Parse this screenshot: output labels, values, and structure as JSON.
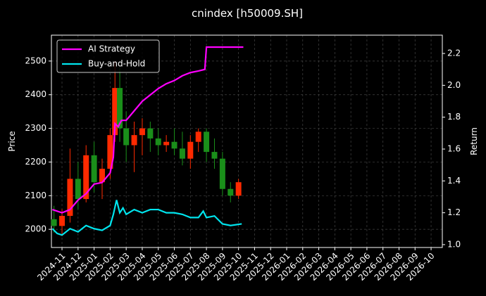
{
  "chart_data": {
    "type": "candlestick",
    "title": "cnindex [h50009.SH]",
    "y_label": "Price",
    "y2_label": "Return",
    "xlim": [
      -0.66,
      23.7
    ],
    "xticks": [
      {
        "value": 0,
        "label": "2024-11"
      },
      {
        "value": 1,
        "label": "2024-12"
      },
      {
        "value": 2,
        "label": "2025-01"
      },
      {
        "value": 3,
        "label": "2025-02"
      },
      {
        "value": 4,
        "label": "2025-03"
      },
      {
        "value": 5,
        "label": "2025-04"
      },
      {
        "value": 6,
        "label": "2025-05"
      },
      {
        "value": 7,
        "label": "2025-06"
      },
      {
        "value": 8,
        "label": "2025-07"
      },
      {
        "value": 9,
        "label": "2025-08"
      },
      {
        "value": 10,
        "label": "2025-09"
      },
      {
        "value": 11,
        "label": "2025-10"
      },
      {
        "value": 12,
        "label": "2025-11"
      },
      {
        "value": 13,
        "label": "2025-12"
      },
      {
        "value": 14,
        "label": "2026-01"
      },
      {
        "value": 15,
        "label": "2026-02"
      },
      {
        "value": 16,
        "label": "2026-03"
      },
      {
        "value": 17,
        "label": "2026-04"
      },
      {
        "value": 18,
        "label": "2026-05"
      },
      {
        "value": 19,
        "label": "2026-06"
      },
      {
        "value": 20,
        "label": "2026-07"
      },
      {
        "value": 21,
        "label": "2026-08"
      },
      {
        "value": 22,
        "label": "2026-09"
      },
      {
        "value": 23,
        "label": "2026-10"
      }
    ],
    "ylim": [
      1946,
      2577
    ],
    "yticks": [
      2000,
      2100,
      2200,
      2300,
      2400,
      2500
    ],
    "y2lim": [
      0.982,
      2.315
    ],
    "y2ticks": [
      {
        "value": 1,
        "label": "1.0"
      },
      1.2,
      1.4,
      1.6,
      1.8,
      {
        "value": 2,
        "label": "2.0"
      },
      2.2
    ],
    "grid": true,
    "legend": "upper left",
    "up_color": "#ff2a00",
    "down_color": "#1a8f1a",
    "candles": {
      "x": [
        -0.5,
        0.0,
        0.5,
        1.0,
        1.5,
        2.0,
        2.5,
        3.0,
        3.3,
        3.6,
        4.0,
        4.5,
        5.0,
        5.5,
        6.0,
        6.5,
        7.0,
        7.5,
        8.0,
        8.5,
        9.0,
        9.5,
        10.0,
        10.5,
        11.0
      ],
      "open": [
        2030,
        2010,
        2040,
        2150,
        2090,
        2220,
        2140,
        2180,
        2280,
        2420,
        2300,
        2250,
        2280,
        2300,
        2270,
        2250,
        2260,
        2240,
        2210,
        2260,
        2290,
        2230,
        2210,
        2120,
        2100
      ],
      "high": [
        2070,
        2060,
        2240,
        2200,
        2250,
        2260,
        2210,
        2300,
        2500,
        2480,
        2350,
        2320,
        2330,
        2320,
        2300,
        2280,
        2300,
        2290,
        2280,
        2300,
        2300,
        2270,
        2230,
        2140,
        2150
      ],
      "low": [
        1990,
        1980,
        2020,
        2060,
        2080,
        2110,
        2090,
        2150,
        2260,
        2260,
        2200,
        2170,
        2220,
        2230,
        2220,
        2230,
        2220,
        2190,
        2180,
        2230,
        2200,
        2180,
        2100,
        2080,
        2090
      ],
      "close": [
        2010,
        2040,
        2150,
        2090,
        2220,
        2140,
        2180,
        2280,
        2420,
        2300,
        2250,
        2280,
        2300,
        2270,
        2250,
        2260,
        2240,
        2210,
        2260,
        2290,
        2230,
        2210,
        2120,
        2100,
        2140
      ]
    },
    "series": [
      {
        "name": "AI Strategy",
        "color": "#ff00ff",
        "axis": "y2",
        "x": [
          -0.6,
          0.0,
          0.5,
          1.0,
          1.5,
          2.0,
          2.5,
          3.0,
          3.2,
          3.3,
          3.5,
          3.7,
          4.0,
          4.5,
          5.0,
          5.5,
          6.0,
          6.5,
          7.0,
          7.5,
          8.0,
          8.5,
          8.9,
          9.0,
          9.5,
          10.0,
          11.3
        ],
        "values": [
          1.22,
          1.2,
          1.22,
          1.28,
          1.32,
          1.38,
          1.39,
          1.45,
          1.55,
          1.76,
          1.74,
          1.78,
          1.78,
          1.84,
          1.9,
          1.94,
          1.98,
          2.01,
          2.03,
          2.06,
          2.08,
          2.09,
          2.1,
          2.24,
          2.24,
          2.24,
          2.24
        ]
      },
      {
        "name": "Buy-and-Hold",
        "color": "#00e5ee",
        "axis": "y2",
        "x": [
          -0.6,
          -0.3,
          0.0,
          0.5,
          1.0,
          1.5,
          2.0,
          2.5,
          3.0,
          3.2,
          3.4,
          3.6,
          3.8,
          4.0,
          4.5,
          5.0,
          5.5,
          6.0,
          6.5,
          7.0,
          7.5,
          8.0,
          8.5,
          8.8,
          9.0,
          9.5,
          10.0,
          10.5,
          11.2
        ],
        "values": [
          1.1,
          1.07,
          1.06,
          1.1,
          1.08,
          1.12,
          1.1,
          1.09,
          1.12,
          1.19,
          1.28,
          1.2,
          1.23,
          1.19,
          1.22,
          1.2,
          1.22,
          1.22,
          1.2,
          1.2,
          1.19,
          1.17,
          1.17,
          1.21,
          1.17,
          1.18,
          1.13,
          1.12,
          1.13
        ]
      }
    ]
  }
}
